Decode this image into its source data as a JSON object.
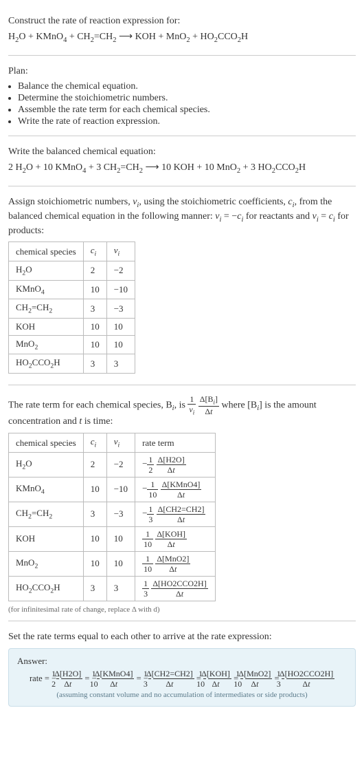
{
  "intro": {
    "prompt": "Construct the rate of reaction expression for:",
    "equation_html": "H<sub>2</sub>O + KMnO<sub>4</sub> + CH<sub>2</sub>=CH<sub>2</sub> ⟶ KOH + MnO<sub>2</sub> + HO<sub>2</sub>CCO<sub>2</sub>H"
  },
  "plan": {
    "heading": "Plan:",
    "items": [
      "Balance the chemical equation.",
      "Determine the stoichiometric numbers.",
      "Assemble the rate term for each chemical species.",
      "Write the rate of reaction expression."
    ]
  },
  "balanced": {
    "heading": "Write the balanced chemical equation:",
    "equation_html": "2 H<sub>2</sub>O + 10 KMnO<sub>4</sub> + 3 CH<sub>2</sub>=CH<sub>2</sub> ⟶ 10 KOH + 10 MnO<sub>2</sub> + 3 HO<sub>2</sub>CCO<sub>2</sub>H"
  },
  "stoich": {
    "text_html": "Assign stoichiometric numbers, <i>ν<sub>i</sub></i>, using the stoichiometric coefficients, <i>c<sub>i</sub></i>, from the balanced chemical equation in the following manner: <i>ν<sub>i</sub></i> = −<i>c<sub>i</sub></i> for reactants and <i>ν<sub>i</sub></i> = <i>c<sub>i</sub></i> for products:",
    "headers": [
      "chemical species",
      "cᵢ",
      "νᵢ"
    ],
    "rows": [
      {
        "species_html": "H<sub>2</sub>O",
        "c": "2",
        "v": "−2"
      },
      {
        "species_html": "KMnO<sub>4</sub>",
        "c": "10",
        "v": "−10"
      },
      {
        "species_html": "CH<sub>2</sub>=CH<sub>2</sub>",
        "c": "3",
        "v": "−3"
      },
      {
        "species_html": "KOH",
        "c": "10",
        "v": "10"
      },
      {
        "species_html": "MnO<sub>2</sub>",
        "c": "10",
        "v": "10"
      },
      {
        "species_html": "HO<sub>2</sub>CCO<sub>2</sub>H",
        "c": "3",
        "v": "3"
      }
    ]
  },
  "rateterm": {
    "text_pre": "The rate term for each chemical species, B",
    "text_mid": ", is ",
    "text_post_html": " where [B<sub><i>i</i></sub>] is the amount concentration and <i>t</i> is time:",
    "headers": [
      "chemical species",
      "cᵢ",
      "νᵢ",
      "rate term"
    ],
    "rows": [
      {
        "species_html": "H<sub>2</sub>O",
        "c": "2",
        "v": "−2",
        "sign": "−",
        "inv": "2",
        "delta": "Δ[H2O]"
      },
      {
        "species_html": "KMnO<sub>4</sub>",
        "c": "10",
        "v": "−10",
        "sign": "−",
        "inv": "10",
        "delta": "Δ[KMnO4]"
      },
      {
        "species_html": "CH<sub>2</sub>=CH<sub>2</sub>",
        "c": "3",
        "v": "−3",
        "sign": "−",
        "inv": "3",
        "delta": "Δ[CH2=CH2]"
      },
      {
        "species_html": "KOH",
        "c": "10",
        "v": "10",
        "sign": "",
        "inv": "10",
        "delta": "Δ[KOH]"
      },
      {
        "species_html": "MnO<sub>2</sub>",
        "c": "10",
        "v": "10",
        "sign": "",
        "inv": "10",
        "delta": "Δ[MnO2]"
      },
      {
        "species_html": "HO<sub>2</sub>CCO<sub>2</sub>H",
        "c": "3",
        "v": "3",
        "sign": "",
        "inv": "3",
        "delta": "Δ[HO2CCO2H]"
      }
    ],
    "footnote": "(for infinitesimal rate of change, replace Δ with d)"
  },
  "final": {
    "heading": "Set the rate terms equal to each other to arrive at the rate expression:",
    "answer_label": "Answer:",
    "answer_note": "(assuming constant volume and no accumulation of intermediates or side products)"
  }
}
